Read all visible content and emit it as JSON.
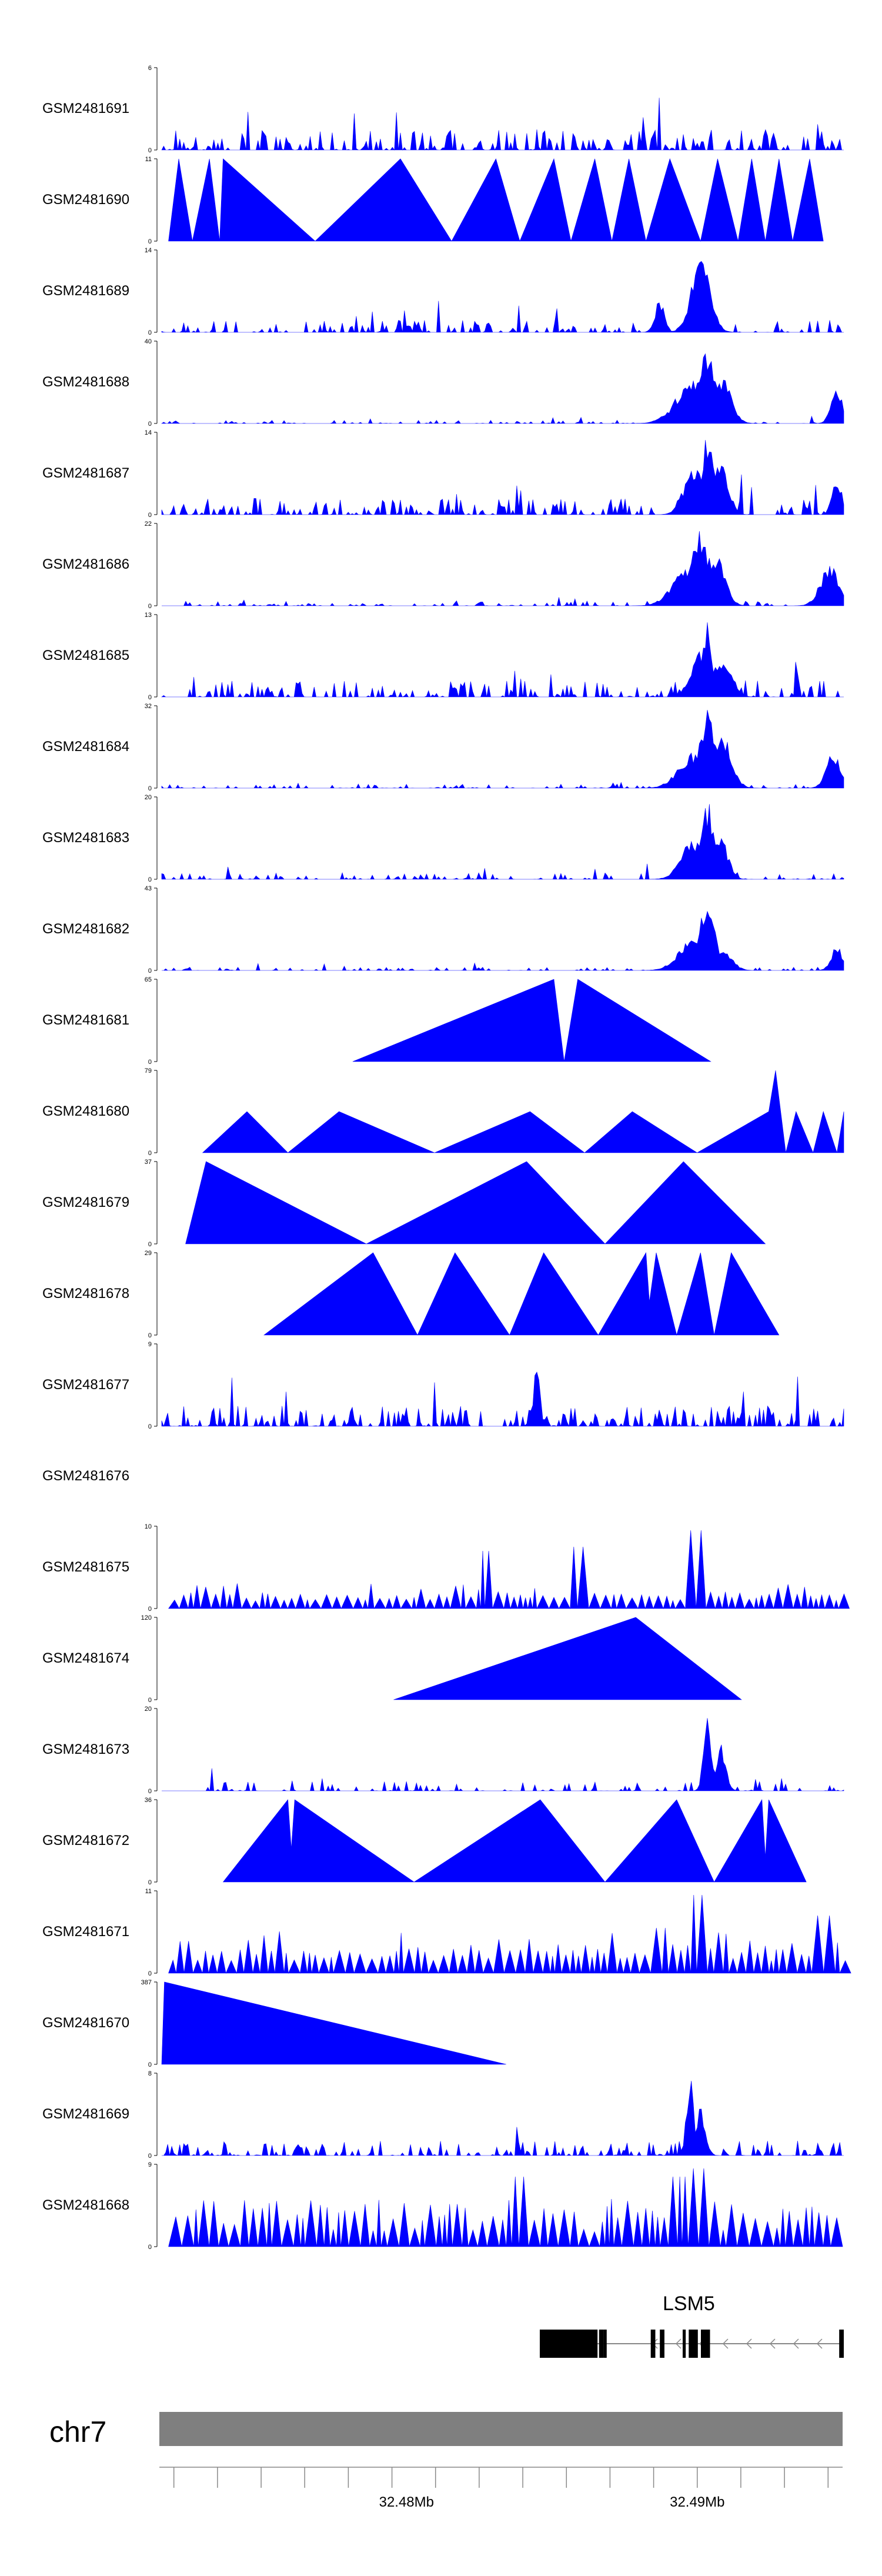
{
  "chart_data": {
    "type": "area",
    "title": "",
    "chromosome": "chr7",
    "x_range_mb": [
      32.4715,
      32.495
    ],
    "x_ticks_mb": [
      32.472,
      32.4735,
      32.475,
      32.4765,
      32.478,
      32.4795,
      32.481,
      32.4825,
      32.484,
      32.4855,
      32.487,
      32.4885,
      32.49,
      32.4915,
      32.493,
      32.4945
    ],
    "x_tick_labels": [
      {
        "value": 32.48,
        "label": "32.48Mb"
      },
      {
        "value": 32.49,
        "label": "32.49Mb"
      }
    ],
    "fill_color": "#0000ff",
    "tracks": [
      {
        "name": "GSM2481691",
        "ymax": 6,
        "ymax_label": "6",
        "ymin_label": "0",
        "style": "dense",
        "seed": 11,
        "density": 0.55,
        "base": 0.25,
        "peaks": []
      },
      {
        "name": "GSM2481690",
        "ymax": 11,
        "ymax_label": "11",
        "ymin_label": "0",
        "style": "tri",
        "seed": 2,
        "points": [
          [
            0.01,
            0
          ],
          [
            0.025,
            1
          ],
          [
            0.045,
            0
          ],
          [
            0.07,
            1
          ],
          [
            0.085,
            0
          ],
          [
            0.09,
            1
          ],
          [
            0.225,
            0
          ],
          [
            0.35,
            1
          ],
          [
            0.425,
            0
          ],
          [
            0.49,
            1
          ],
          [
            0.525,
            0
          ],
          [
            0.575,
            1
          ],
          [
            0.6,
            0
          ],
          [
            0.635,
            1
          ],
          [
            0.66,
            0
          ],
          [
            0.685,
            1
          ],
          [
            0.71,
            0
          ],
          [
            0.745,
            1
          ],
          [
            0.79,
            0
          ],
          [
            0.815,
            1
          ],
          [
            0.845,
            0
          ],
          [
            0.865,
            1
          ],
          [
            0.885,
            0
          ],
          [
            0.905,
            1
          ],
          [
            0.925,
            0
          ],
          [
            0.95,
            1
          ],
          [
            0.97,
            0
          ]
        ]
      },
      {
        "name": "GSM2481689",
        "ymax": 14,
        "ymax_label": "14",
        "ymin_label": "0",
        "style": "dense",
        "seed": 5,
        "density": 0.45,
        "base": 0.15,
        "peaks": [
          [
            0.79,
            0.9,
            0.02
          ],
          [
            0.8,
            0.75,
            0.01
          ],
          [
            0.73,
            0.4,
            0.01
          ]
        ]
      },
      {
        "name": "GSM2481688",
        "ymax": 40,
        "ymax_label": "40",
        "ymin_label": "0",
        "style": "dense",
        "seed": 7,
        "density": 0.3,
        "base": 0.04,
        "peaks": [
          [
            0.78,
            0.55,
            0.035
          ],
          [
            0.8,
            0.95,
            0.015
          ],
          [
            0.82,
            0.6,
            0.02
          ],
          [
            0.99,
            0.45,
            0.012
          ]
        ]
      },
      {
        "name": "GSM2481687",
        "ymax": 14,
        "ymax_label": "14",
        "ymin_label": "0",
        "style": "dense",
        "seed": 9,
        "density": 0.5,
        "base": 0.2,
        "peaks": [
          [
            0.78,
            0.6,
            0.02
          ],
          [
            0.8,
            1.0,
            0.012
          ],
          [
            0.82,
            0.7,
            0.015
          ],
          [
            0.99,
            0.45,
            0.01
          ]
        ]
      },
      {
        "name": "GSM2481686",
        "ymax": 22,
        "ymax_label": "22",
        "ymin_label": "0",
        "style": "dense",
        "seed": 13,
        "density": 0.35,
        "base": 0.06,
        "peaks": [
          [
            0.77,
            0.5,
            0.03
          ],
          [
            0.79,
            0.95,
            0.018
          ],
          [
            0.81,
            0.7,
            0.02
          ],
          [
            0.98,
            0.5,
            0.02
          ]
        ]
      },
      {
        "name": "GSM2481685",
        "ymax": 13,
        "ymax_label": "13",
        "ymin_label": "0",
        "style": "dense",
        "seed": 17,
        "density": 0.5,
        "base": 0.2,
        "peaks": [
          [
            0.79,
            0.6,
            0.02
          ],
          [
            0.8,
            0.95,
            0.01
          ],
          [
            0.82,
            0.5,
            0.02
          ]
        ]
      },
      {
        "name": "GSM2481684",
        "ymax": 32,
        "ymax_label": "32",
        "ymin_label": "0",
        "style": "dense",
        "seed": 19,
        "density": 0.3,
        "base": 0.05,
        "peaks": [
          [
            0.78,
            0.45,
            0.03
          ],
          [
            0.8,
            1.0,
            0.015
          ],
          [
            0.82,
            0.75,
            0.02
          ],
          [
            0.985,
            0.45,
            0.015
          ]
        ]
      },
      {
        "name": "GSM2481683",
        "ymax": 20,
        "ymax_label": "20",
        "ymin_label": "0",
        "style": "dense",
        "seed": 23,
        "density": 0.35,
        "base": 0.08,
        "peaks": [
          [
            0.78,
            0.5,
            0.025
          ],
          [
            0.8,
            0.95,
            0.015
          ],
          [
            0.82,
            0.5,
            0.015
          ]
        ]
      },
      {
        "name": "GSM2481682",
        "ymax": 43,
        "ymax_label": "43",
        "ymin_label": "0",
        "style": "dense",
        "seed": 29,
        "density": 0.25,
        "base": 0.04,
        "peaks": [
          [
            0.78,
            0.4,
            0.03
          ],
          [
            0.8,
            0.95,
            0.015
          ],
          [
            0.82,
            0.3,
            0.02
          ],
          [
            0.99,
            0.3,
            0.012
          ]
        ]
      },
      {
        "name": "GSM2481681",
        "ymax": 65,
        "ymax_label": "65",
        "ymin_label": "0",
        "style": "tri",
        "seed": 3,
        "points": [
          [
            0.28,
            0
          ],
          [
            0.575,
            1
          ],
          [
            0.59,
            0
          ],
          [
            0.61,
            1
          ],
          [
            0.805,
            0
          ]
        ]
      },
      {
        "name": "GSM2481680",
        "ymax": 79,
        "ymax_label": "79",
        "ymin_label": "0",
        "style": "tri",
        "seed": 4,
        "points": [
          [
            0.06,
            0
          ],
          [
            0.125,
            0.5
          ],
          [
            0.185,
            0
          ],
          [
            0.26,
            0.5
          ],
          [
            0.4,
            0
          ],
          [
            0.54,
            0.5
          ],
          [
            0.62,
            0
          ],
          [
            0.69,
            0.5
          ],
          [
            0.785,
            0
          ],
          [
            0.89,
            0.5
          ],
          [
            0.9,
            1
          ],
          [
            0.915,
            0
          ],
          [
            0.93,
            0.5
          ],
          [
            0.955,
            0
          ],
          [
            0.97,
            0.5
          ],
          [
            0.99,
            0
          ],
          [
            1.0,
            0.5
          ]
        ]
      },
      {
        "name": "GSM2481679",
        "ymax": 37,
        "ymax_label": "37",
        "ymin_label": "0",
        "style": "tri",
        "seed": 6,
        "points": [
          [
            0.035,
            0
          ],
          [
            0.065,
            1
          ],
          [
            0.3,
            0
          ],
          [
            0.535,
            1
          ],
          [
            0.65,
            0
          ],
          [
            0.765,
            1
          ],
          [
            0.885,
            0
          ]
        ]
      },
      {
        "name": "GSM2481678",
        "ymax": 29,
        "ymax_label": "29",
        "ymin_label": "0",
        "style": "tri",
        "seed": 8,
        "points": [
          [
            0.15,
            0
          ],
          [
            0.31,
            1
          ],
          [
            0.375,
            0
          ],
          [
            0.43,
            1
          ],
          [
            0.51,
            0
          ],
          [
            0.56,
            1
          ],
          [
            0.64,
            0
          ],
          [
            0.71,
            1
          ],
          [
            0.715,
            0.4
          ],
          [
            0.725,
            1
          ],
          [
            0.755,
            0
          ],
          [
            0.79,
            1
          ],
          [
            0.81,
            0
          ],
          [
            0.835,
            1
          ],
          [
            0.905,
            0
          ]
        ]
      },
      {
        "name": "GSM2481677",
        "ymax": 9,
        "ymax_label": "9",
        "ymin_label": "0",
        "style": "dense",
        "seed": 31,
        "density": 0.55,
        "base": 0.25,
        "peaks": [
          [
            0.55,
            0.95,
            0.006
          ]
        ]
      },
      {
        "name": "GSM2481676",
        "ymax": 0,
        "ymax_label": "",
        "ymin_label": "",
        "style": "empty",
        "seed": 0
      },
      {
        "name": "GSM2481675",
        "ymax": 10,
        "ymax_label": "10",
        "ymin_label": "0",
        "style": "spiky",
        "seed": 37,
        "density": 0.35,
        "base": 0.18,
        "peaks": [
          [
            0.78,
            0.95,
            0.006
          ],
          [
            0.48,
            0.7,
            0.004
          ],
          [
            0.61,
            0.75,
            0.004
          ]
        ]
      },
      {
        "name": "GSM2481674",
        "ymax": 120,
        "ymax_label": "120",
        "ymin_label": "0",
        "style": "tri",
        "seed": 10,
        "points": [
          [
            0.34,
            0
          ],
          [
            0.695,
            1
          ],
          [
            0.85,
            0
          ]
        ]
      },
      {
        "name": "GSM2481673",
        "ymax": 20,
        "ymax_label": "20",
        "ymin_label": "0",
        "style": "dense",
        "seed": 41,
        "density": 0.3,
        "base": 0.12,
        "start": 0.05,
        "peaks": [
          [
            0.8,
            0.95,
            0.008
          ],
          [
            0.82,
            0.6,
            0.01
          ]
        ]
      },
      {
        "name": "GSM2481672",
        "ymax": 36,
        "ymax_label": "36",
        "ymin_label": "0",
        "style": "tri",
        "seed": 12,
        "points": [
          [
            0.09,
            0
          ],
          [
            0.185,
            1
          ],
          [
            0.19,
            0.4
          ],
          [
            0.195,
            1
          ],
          [
            0.37,
            0
          ],
          [
            0.555,
            1
          ],
          [
            0.65,
            0
          ],
          [
            0.755,
            1
          ],
          [
            0.81,
            0
          ],
          [
            0.88,
            1
          ],
          [
            0.885,
            0.3
          ],
          [
            0.89,
            1
          ],
          [
            0.945,
            0
          ]
        ]
      },
      {
        "name": "GSM2481671",
        "ymax": 11,
        "ymax_label": "11",
        "ymin_label": "0",
        "style": "spiky",
        "seed": 43,
        "density": 0.3,
        "base": 0.3,
        "peaks": [
          [
            0.79,
            0.95,
            0.005
          ],
          [
            0.73,
            0.55,
            0.004
          ],
          [
            0.97,
            0.7,
            0.004
          ]
        ]
      },
      {
        "name": "GSM2481670",
        "ymax": 387,
        "ymax_label": "387",
        "ymin_label": "0",
        "style": "tri",
        "seed": 14,
        "points": [
          [
            0.0,
            0
          ],
          [
            0.004,
            1
          ],
          [
            0.505,
            0
          ]
        ]
      },
      {
        "name": "GSM2481669",
        "ymax": 8,
        "ymax_label": "8",
        "ymin_label": "0",
        "style": "dense",
        "seed": 47,
        "density": 0.45,
        "base": 0.18,
        "peaks": [
          [
            0.775,
            0.95,
            0.008
          ],
          [
            0.79,
            0.6,
            0.01
          ]
        ]
      },
      {
        "name": "GSM2481668",
        "ymax": 9,
        "ymax_label": "9",
        "ymin_label": "0",
        "style": "spiky",
        "seed": 53,
        "density": 0.7,
        "base": 0.35,
        "peaks": [
          [
            0.785,
            0.95,
            0.008
          ],
          [
            0.53,
            0.85,
            0.004
          ],
          [
            0.76,
            0.85,
            0.004
          ]
        ]
      }
    ],
    "gene": {
      "name": "LSM5",
      "strand": "-",
      "exons_frac": [
        [
          0.0,
          0.19
        ],
        [
          0.195,
          0.21
        ],
        [
          0.21,
          0.22
        ],
        [
          0.365,
          0.38
        ],
        [
          0.395,
          0.41
        ],
        [
          0.47,
          0.48
        ],
        [
          0.49,
          0.52
        ],
        [
          0.53,
          0.56
        ],
        [
          0.985,
          1.0
        ]
      ],
      "span_frac": [
        0.555,
        1.0
      ]
    }
  }
}
